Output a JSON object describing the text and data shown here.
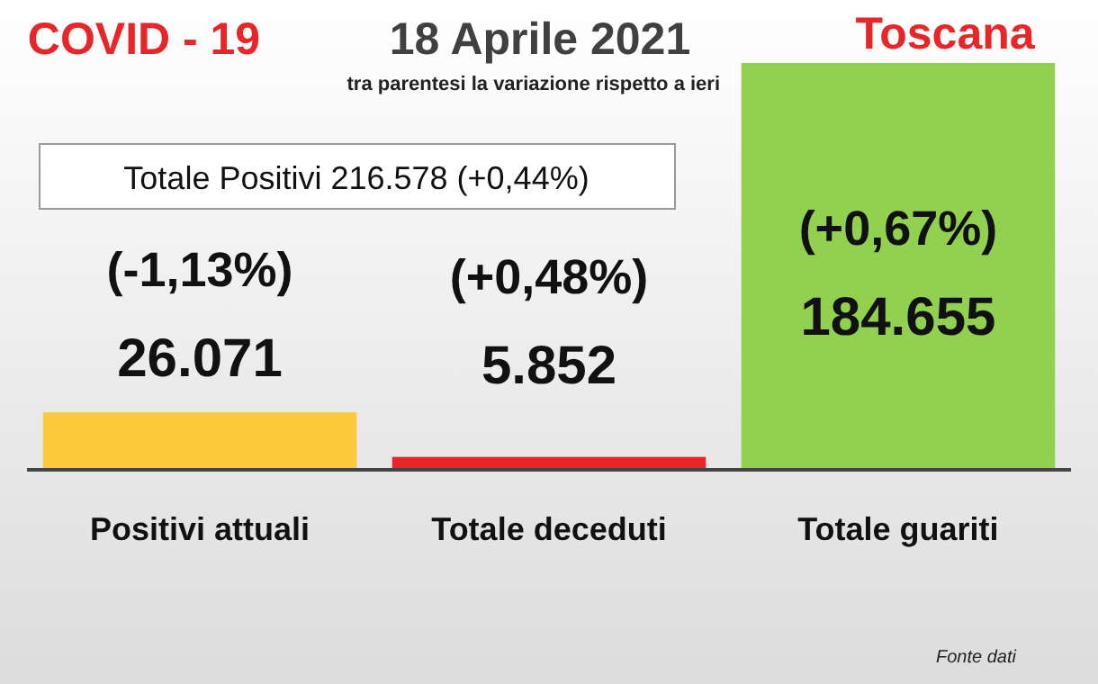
{
  "chart_data": {
    "type": "bar",
    "title": "18 Aprile 2021",
    "subtitle": "tra parentesi la variazione rispetto a ieri",
    "categories": [
      "Positivi attuali",
      "Totale deceduti",
      "Totale guariti"
    ],
    "values": [
      26071,
      5852,
      184655
    ],
    "colors": [
      "#fcc93a",
      "#e8262a",
      "#92d050"
    ],
    "value_labels": [
      "26.071",
      "5.852",
      "184.655"
    ],
    "annotations": [
      "COVID - 19",
      "Toscana",
      "Totale Positivi   216.578 (+0,44%)",
      "Fonte dati",
      "(-1,13%)",
      "(+0,48%)",
      "(+0,67%)"
    ]
  }
}
